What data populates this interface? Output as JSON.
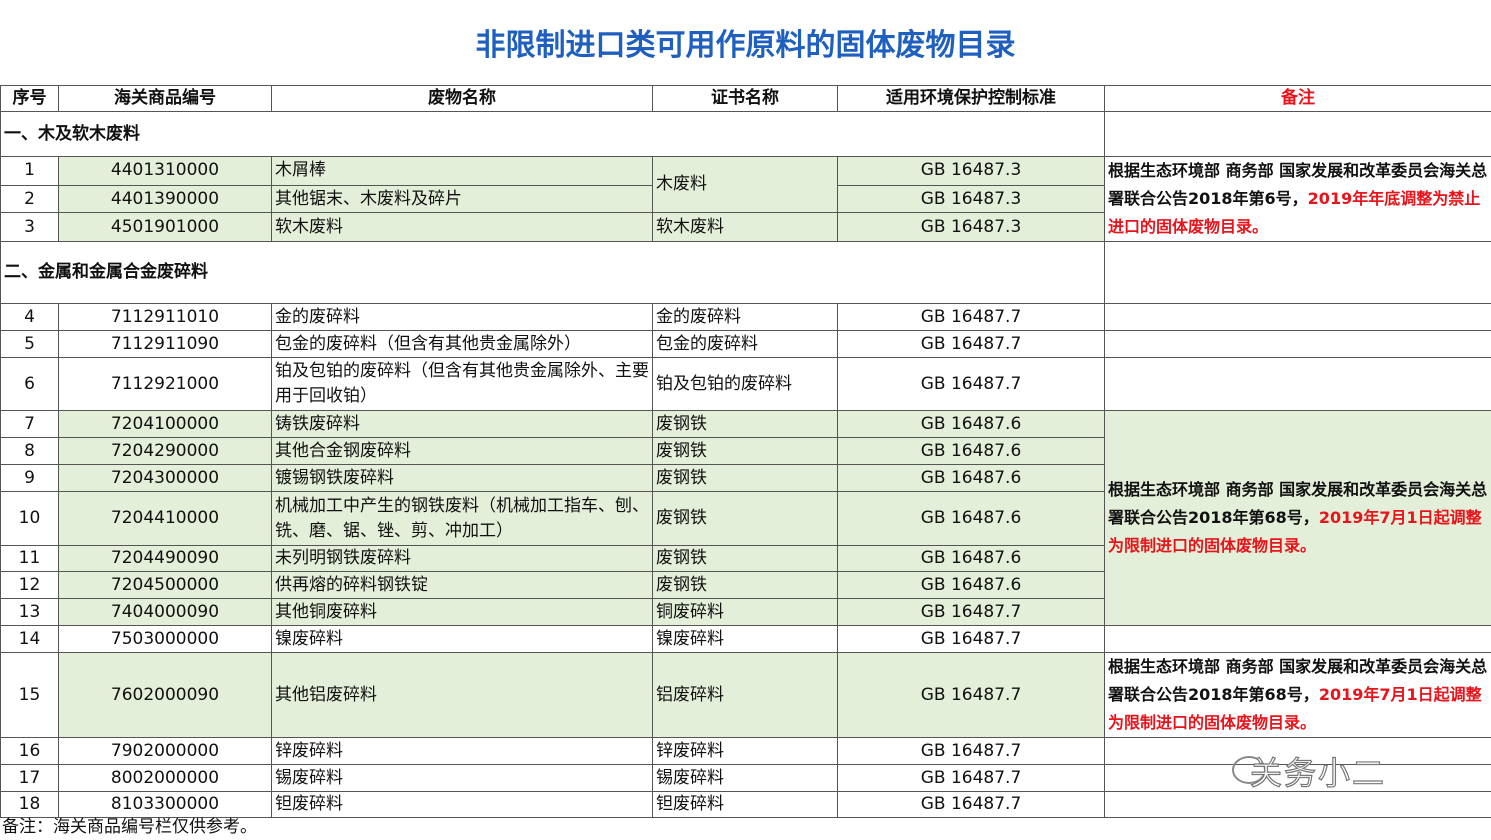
{
  "title": "非限制进口类可用作原料的固体废物目录",
  "table": {
    "header": [
      "序号",
      "海关商品编号",
      "废物名称",
      "证书名称",
      "适用环境保护控制标准",
      "备注"
    ],
    "rows": [
      {
        "heading": "一、木及软木废料"
      },
      {
        "no": "1",
        "code": "4401310000",
        "name": "木屑棒",
        "cert": "木废料",
        "standard": "GB 16487.3"
      },
      {
        "no": "2",
        "code": "4401390000",
        "name": "其他锯末、木废料及碎片",
        "standard": "GB 16487.3"
      },
      {
        "no": "3",
        "code": "4501901000",
        "name": "软木废料",
        "cert": "软木废料",
        "standard": "GB 16487.3"
      },
      {
        "heading": "二、金属和金属合金废碎料"
      },
      {
        "no": "4",
        "code": "7112911010",
        "name": "金的废碎料",
        "cert": "金的废碎料",
        "standard": "GB 16487.7"
      },
      {
        "no": "5",
        "code": "7112911090",
        "name": "包金的废碎料（但含有其他贵金属除外）",
        "cert": "包金的废碎料",
        "standard": "GB 16487.7"
      },
      {
        "no": "6",
        "code": "7112921000",
        "name": "铂及包铂的废碎料（但含有其他贵金属除外、主要用于回收铂）",
        "cert": "铂及包铂的废碎料",
        "standard": "GB 16487.7"
      },
      {
        "no": "7",
        "code": "7204100000",
        "name": "铸铁废碎料",
        "cert": "废钢铁",
        "standard": "GB 16487.6"
      },
      {
        "no": "8",
        "code": "7204290000",
        "name": "其他合金钢废碎料",
        "cert": "废钢铁",
        "standard": "GB 16487.6"
      },
      {
        "no": "9",
        "code": "7204300000",
        "name": "镀锡钢铁废碎料",
        "cert": "废钢铁",
        "standard": "GB 16487.6"
      },
      {
        "no": "10",
        "code": "7204410000",
        "name": "机械加工中产生的钢铁废料（机械加工指车、刨、铣、磨、锯、锉、剪、冲加工）",
        "cert": "废钢铁",
        "standard": "GB 16487.6"
      },
      {
        "no": "11",
        "code": "7204490090",
        "name": "未列明钢铁废碎料",
        "cert": "废钢铁",
        "standard": "GB 16487.6"
      },
      {
        "no": "12",
        "code": "7204500000",
        "name": "供再熔的碎料钢铁锭",
        "cert": "废钢铁",
        "standard": "GB 16487.6"
      },
      {
        "no": "13",
        "code": "7404000090",
        "name": "其他铜废碎料",
        "cert": "铜废碎料",
        "standard": "GB 16487.7"
      },
      {
        "no": "14",
        "code": "7503000000",
        "name": "镍废碎料",
        "cert": "镍废碎料",
        "standard": "GB 16487.7"
      },
      {
        "no": "15",
        "code": "7602000090",
        "name": "其他铝废碎料",
        "cert": "铝废碎料",
        "standard": "GB 16487.7"
      },
      {
        "no": "16",
        "code": "7902000000",
        "name": "锌废碎料",
        "cert": "锌废碎料",
        "standard": "GB 16487.7"
      },
      {
        "no": "17",
        "code": "8002000000",
        "name": "锡废碎料",
        "cert": "锡废碎料",
        "standard": "GB 16487.7"
      },
      {
        "no": "18",
        "code": "8103300000",
        "name": "钽废碎料",
        "cert": "钽废碎料",
        "standard": "GB 16487.7"
      }
    ]
  },
  "remarks": [
    {
      "text": "根据生态环境部 商务部 国家发展和改革委员会海关总署联合公告2018年第6号，",
      "highlight": "2019年年底调整为禁止进口的固体废物目录。"
    },
    {
      "text": "根据生态环境部 商务部 国家发展和改革委员会海关总署联合公告2018年第68号，",
      "highlight": "2019年7月1日起调整为限制进口的固体废物目录。"
    },
    {
      "text": "根据生态环境部 商务部 国家发展和改革委员会海关总署联合公告2018年第68号，",
      "highlight": "2019年7月1日起调整为限制进口的固体废物目录。"
    }
  ],
  "footnote": "备注：海关商品编号栏仅供参考。",
  "watermark": "关务小二"
}
